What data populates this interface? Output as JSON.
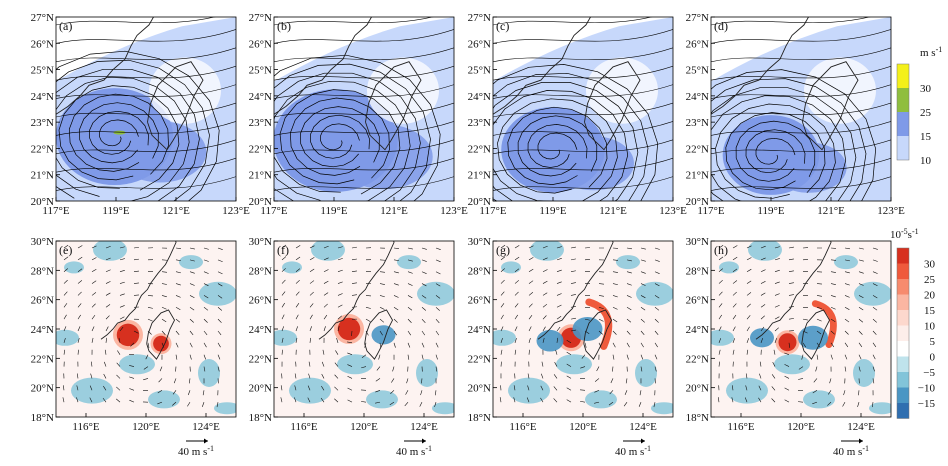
{
  "chart_data": [
    {
      "type": "heatmap",
      "group": "wind_speed",
      "xlim": [
        117,
        123
      ],
      "ylim": [
        20,
        27
      ],
      "x_ticks": [
        "117°E",
        "119°E",
        "121°E",
        "123°E"
      ],
      "y_ticks": [
        "20°N",
        "21°N",
        "22°N",
        "23°N",
        "24°N",
        "25°N",
        "26°N",
        "27°N"
      ],
      "colorbar": {
        "unit": "m s",
        "unit_exp": "-1",
        "levels": [
          "10",
          "15",
          "25",
          "30"
        ],
        "colors": [
          "#c7d8fb",
          "#7f9ae8",
          "#8fbe3e",
          "#f4f01a"
        ]
      },
      "panels": [
        {
          "label": "(a)",
          "center": [
            118.95,
            22.45
          ],
          "ring_outer": 1.7
        },
        {
          "label": "(b)",
          "center": [
            119.05,
            22.3
          ],
          "ring_outer": 1.8
        },
        {
          "label": "(c)",
          "center": [
            119.0,
            21.95
          ],
          "ring_outer": 1.5
        },
        {
          "label": "(d)",
          "center": [
            119.0,
            21.75
          ],
          "ring_outer": 1.4
        }
      ]
    },
    {
      "type": "heatmap",
      "group": "vorticity",
      "xlim": [
        114,
        126
      ],
      "ylim": [
        18,
        30
      ],
      "x_ticks": [
        "116°E",
        "120°E",
        "124°E"
      ],
      "y_ticks": [
        "18°N",
        "20°N",
        "22°N",
        "24°N",
        "26°N",
        "28°N",
        "30°N"
      ],
      "vector_key": {
        "value": "40",
        "unit": "m s",
        "unit_exp": "-1"
      },
      "colorbar": {
        "unit": "10",
        "unit_exp": "-5",
        "unit_suffix": "s",
        "unit_suffix_exp": "-1",
        "levels": [
          "30",
          "25",
          "20",
          "15",
          "10",
          "5",
          "0",
          "−5",
          "−10",
          "−15"
        ],
        "colors": [
          "#d7301f",
          "#ef5a3c",
          "#f78b6e",
          "#fbb6a2",
          "#fdd8cd",
          "#fdeeea",
          "#ffffff",
          "#bfe3ec",
          "#82c4d9",
          "#4a96c4",
          "#2f6fb0"
        ]
      },
      "panels": [
        {
          "label": "(e)",
          "center": [
            118.8,
            23.6
          ],
          "blobs": [
            [
              118.8,
              23.6,
              1.0,
              "pos"
            ],
            [
              121.0,
              23.0,
              0.7,
              "pos"
            ]
          ]
        },
        {
          "label": "(f)",
          "center": [
            119.0,
            24.0
          ],
          "blobs": [
            [
              119.0,
              24.0,
              1.0,
              "pos"
            ],
            [
              121.3,
              23.6,
              0.8,
              "neg"
            ]
          ]
        },
        {
          "label": "(g)",
          "center": [
            119.2,
            23.4
          ],
          "blobs": [
            [
              119.2,
              23.4,
              0.9,
              "pos"
            ],
            [
              121.1,
              24.4,
              1.4,
              "arcpos"
            ],
            [
              120.3,
              24.0,
              1.0,
              "neg"
            ],
            [
              117.8,
              23.2,
              0.9,
              "neg"
            ]
          ]
        },
        {
          "label": "(h)",
          "center": [
            119.1,
            23.1
          ],
          "blobs": [
            [
              119.1,
              23.1,
              0.8,
              "pos"
            ],
            [
              121.6,
              24.4,
              1.3,
              "arcpos"
            ],
            [
              120.8,
              23.4,
              1.0,
              "neg"
            ],
            [
              117.4,
              23.4,
              0.8,
              "neg"
            ]
          ]
        }
      ]
    }
  ]
}
